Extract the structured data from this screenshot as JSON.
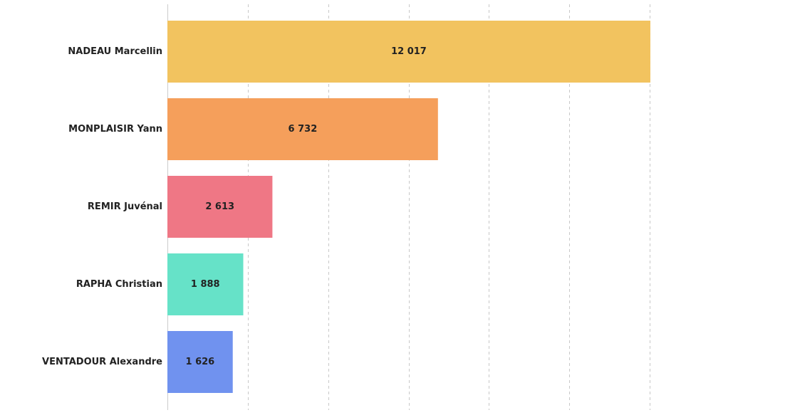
{
  "chart_data": {
    "type": "bar",
    "orientation": "horizontal",
    "categories": [
      "NADEAU Marcellin",
      "MONPLAISIR Yann",
      "REMIR Juvénal",
      "RAPHA Christian",
      "VENTADOUR Alexandre"
    ],
    "values": [
      12017,
      6732,
      2613,
      1888,
      1626
    ],
    "value_labels": [
      "12 017",
      "6 732",
      "2 613",
      "1 888",
      "1 626"
    ],
    "colors": [
      "#f2c35f",
      "#f59f5b",
      "#ef7785",
      "#66e2c8",
      "#7092ef"
    ],
    "xlim": [
      0,
      14000
    ],
    "gridlines": [
      0,
      2000,
      4000,
      6000,
      8000,
      10000,
      12000
    ],
    "grid": true,
    "title": "",
    "xlabel": "",
    "ylabel": ""
  }
}
